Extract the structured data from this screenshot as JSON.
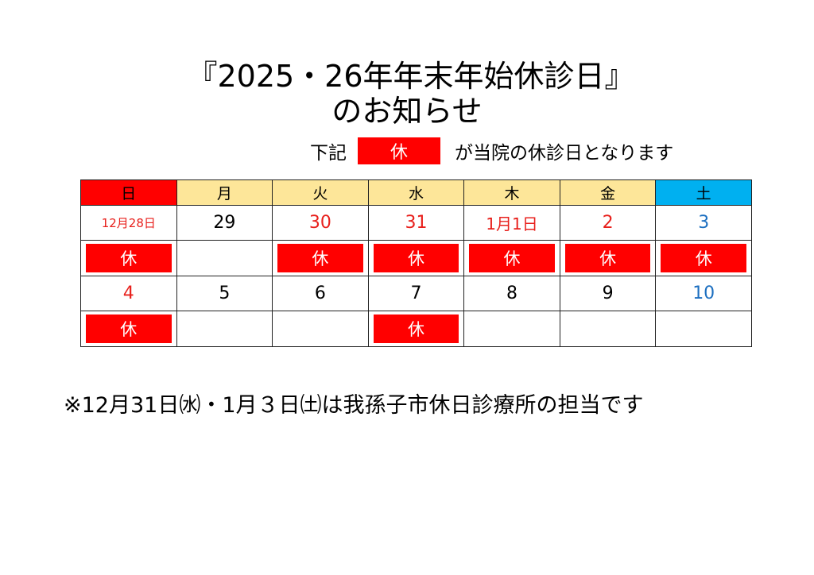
{
  "title": {
    "line1": "『2025・26年年末年始休診日』",
    "line2": "のお知らせ"
  },
  "legend": {
    "prefix": "下記",
    "mark": "休",
    "suffix": "が当院の休診日となります"
  },
  "colors": {
    "closed": "#ff0000",
    "header": "#fde699",
    "sunday_header": "#ff0000",
    "saturday_header": "#00b0f0",
    "holiday_text": "#e8201c",
    "saturday_text": "#1c6fc0"
  },
  "calendar": {
    "weekdays": [
      "日",
      "月",
      "火",
      "水",
      "木",
      "金",
      "土"
    ],
    "weeks": [
      {
        "dates": [
          {
            "label": "12月28日",
            "color": "red",
            "closed": true
          },
          {
            "label": "29",
            "color": "black",
            "closed": false
          },
          {
            "label": "30",
            "color": "red",
            "closed": true
          },
          {
            "label": "31",
            "color": "red",
            "closed": true
          },
          {
            "label": "1月1日",
            "color": "red",
            "closed": true
          },
          {
            "label": "2",
            "color": "red",
            "closed": true
          },
          {
            "label": "3",
            "color": "blue",
            "closed": true
          }
        ]
      },
      {
        "dates": [
          {
            "label": "4",
            "color": "red",
            "closed": true
          },
          {
            "label": "5",
            "color": "black",
            "closed": false
          },
          {
            "label": "6",
            "color": "black",
            "closed": false
          },
          {
            "label": "7",
            "color": "black",
            "closed": true
          },
          {
            "label": "8",
            "color": "black",
            "closed": false
          },
          {
            "label": "9",
            "color": "black",
            "closed": false
          },
          {
            "label": "10",
            "color": "blue",
            "closed": false
          }
        ]
      }
    ],
    "closed_label": "休"
  },
  "note": "※12月31日㈬・1月３日㈯は我孫子市休日診療所の担当です"
}
